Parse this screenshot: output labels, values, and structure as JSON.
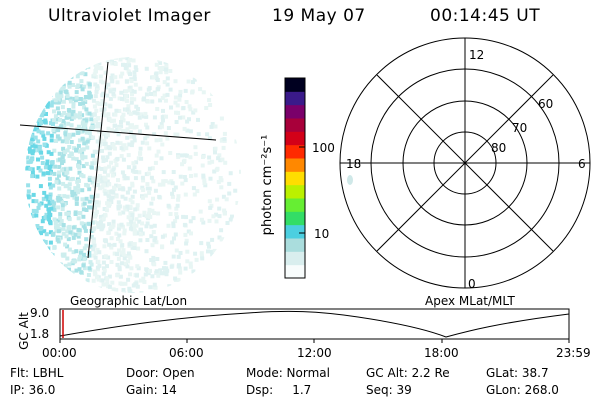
{
  "header": {
    "title": "Ultraviolet Imager",
    "date": "19 May 07",
    "time": "00:14:45 UT"
  },
  "colorbar": {
    "ticks": [
      "100",
      "10"
    ],
    "label": "photon cm⁻²s⁻¹",
    "colors": [
      "#f8fcfc",
      "#d9eeee",
      "#aadddd",
      "#4ccfe0",
      "#33dd66",
      "#66ee33",
      "#bbf000",
      "#ffdd00",
      "#ff8800",
      "#ff2a00",
      "#d30018",
      "#a8003a",
      "#7a006a",
      "#3a1a8a",
      "#000020"
    ]
  },
  "polar": {
    "lat_labels": [
      "60",
      "70",
      "80"
    ],
    "mlt_labels": {
      "top": "12",
      "left": "18",
      "right": "6",
      "bottom": "0"
    }
  },
  "timeline": {
    "left_label": "Geographic Lat/Lon",
    "right_label": "Apex MLat/MLT",
    "yaxis_title": "GC Alt",
    "y_ticks": [
      "9.0",
      "1.8"
    ],
    "x_ticks": [
      "00:00",
      "06:00",
      "12:00",
      "18:00",
      "23:59"
    ],
    "marker_color": "#cc0000"
  },
  "info": [
    [
      "Flt: LBHL",
      "Door: Open",
      "Mode: Normal",
      "GC Alt: 2.2 Re",
      "GLat: 38.7"
    ],
    [
      "IP: 36.0",
      "Gain: 14",
      "Dsp:     1.7",
      "Seq: 39",
      "GLon: 268.0"
    ]
  ]
}
